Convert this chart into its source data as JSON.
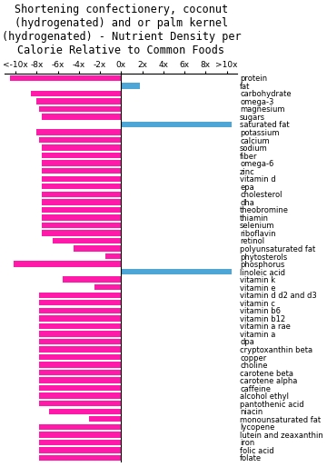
{
  "title": "Shortening confectionery, coconut\n(hydrogenated) and or palm kernel\n(hydrogenated) - Nutrient Density per\nCalorie Relative to Common Foods",
  "nutrients": [
    "protein",
    "fat",
    "carbohydrate",
    "omega-3",
    "magnesium",
    "sugars",
    "saturated fat",
    "potassium",
    "calcium",
    "sodium",
    "fiber",
    "omega-6",
    "zinc",
    "vitamin d",
    "epa",
    "cholesterol",
    "dha",
    "theobromine",
    "thiamin",
    "selenium",
    "riboflavin",
    "retinol",
    "polyunsaturated fat",
    "phytosterols",
    "phosphorus",
    "linoleic acid",
    "vitamin k",
    "vitamin e",
    "vitamin d d2 and d3",
    "vitamin c",
    "vitamin b6",
    "vitamin b12",
    "vitamin a rae",
    "vitamin a",
    "dpa",
    "cryptoxanthin beta",
    "copper",
    "choline",
    "carotene beta",
    "carotene alpha",
    "caffeine",
    "alcohol ethyl",
    "pantothenic acid",
    "niacin",
    "monounsaturated fat",
    "lycopene",
    "lutein and zeaxanthin",
    "iron",
    "folic acid",
    "folate"
  ],
  "values": [
    -10.5,
    1.8,
    -8.5,
    -8.0,
    -7.8,
    -7.5,
    10.5,
    -8.0,
    -7.8,
    -7.5,
    -7.5,
    -7.5,
    -7.5,
    -7.5,
    -7.5,
    -7.5,
    -7.5,
    -7.5,
    -7.5,
    -7.5,
    -7.5,
    -6.5,
    -4.5,
    -1.5,
    -10.2,
    10.5,
    -5.5,
    -2.5,
    -7.8,
    -7.8,
    -7.8,
    -7.8,
    -7.8,
    -7.8,
    -7.8,
    -7.8,
    -7.8,
    -7.8,
    -7.8,
    -7.8,
    -7.8,
    -7.8,
    -7.8,
    -6.8,
    -3.0,
    -7.8,
    -7.8,
    -7.8,
    -7.8,
    -7.8
  ],
  "colors": [
    "#ff1aaa",
    "#4da6d5",
    "#ff1aaa",
    "#ff1aaa",
    "#ff1aaa",
    "#ff1aaa",
    "#4da6d5",
    "#ff1aaa",
    "#ff1aaa",
    "#ff1aaa",
    "#ff1aaa",
    "#ff1aaa",
    "#ff1aaa",
    "#ff1aaa",
    "#ff1aaa",
    "#ff1aaa",
    "#ff1aaa",
    "#ff1aaa",
    "#ff1aaa",
    "#ff1aaa",
    "#ff1aaa",
    "#ff1aaa",
    "#ff1aaa",
    "#ff1aaa",
    "#ff1aaa",
    "#4da6d5",
    "#ff1aaa",
    "#ff1aaa",
    "#ff1aaa",
    "#ff1aaa",
    "#ff1aaa",
    "#ff1aaa",
    "#ff1aaa",
    "#ff1aaa",
    "#ff1aaa",
    "#ff1aaa",
    "#ff1aaa",
    "#ff1aaa",
    "#ff1aaa",
    "#ff1aaa",
    "#ff1aaa",
    "#ff1aaa",
    "#ff1aaa",
    "#ff1aaa",
    "#ff1aaa",
    "#ff1aaa",
    "#ff1aaa",
    "#ff1aaa",
    "#ff1aaa",
    "#ff1aaa"
  ],
  "xlim": [
    -11,
    11
  ],
  "xticks": [
    -10,
    -8,
    -6,
    -4,
    -2,
    0,
    2,
    4,
    6,
    8,
    10
  ],
  "xticklabels": [
    "<-10x",
    "-8x",
    "-6x",
    "-4x",
    "-2x",
    "0x",
    "2x",
    "4x",
    "6x",
    "8x",
    ">10x"
  ],
  "bar_height": 0.75,
  "background_color": "#ffffff",
  "title_fontsize": 8.5,
  "tick_fontsize": 6.5,
  "label_fontsize": 6.0
}
